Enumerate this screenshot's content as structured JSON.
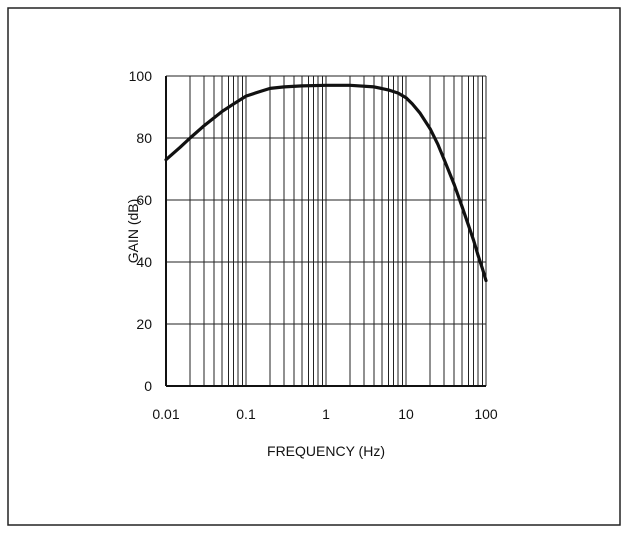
{
  "chart_data": {
    "type": "line",
    "title": "",
    "xlabel": "FREQUENCY (Hz)",
    "ylabel": "GAIN (dB)",
    "xscale": "log",
    "xlim": [
      0.01,
      100
    ],
    "ylim": [
      0,
      100
    ],
    "grid": true,
    "x_tick_labels": [
      "0.01",
      "0.1",
      "1",
      "10",
      "100"
    ],
    "y_tick_labels": [
      "0",
      "20",
      "40",
      "60",
      "80",
      "100"
    ],
    "series": [
      {
        "x": [
          0.01,
          0.015,
          0.02,
          0.03,
          0.05,
          0.07,
          0.1,
          0.15,
          0.2,
          0.3,
          0.5,
          1,
          2,
          4,
          6,
          8,
          10,
          12,
          15,
          20,
          25,
          30,
          40,
          50,
          60,
          70,
          80,
          90,
          100
        ],
        "y": [
          73,
          77,
          80,
          84,
          88.5,
          91,
          93.5,
          95,
          96,
          96.5,
          96.8,
          97,
          97,
          96.5,
          95.5,
          94.5,
          93,
          91,
          88,
          83,
          78,
          73,
          65,
          58,
          52,
          47,
          42,
          38,
          34
        ]
      }
    ]
  }
}
